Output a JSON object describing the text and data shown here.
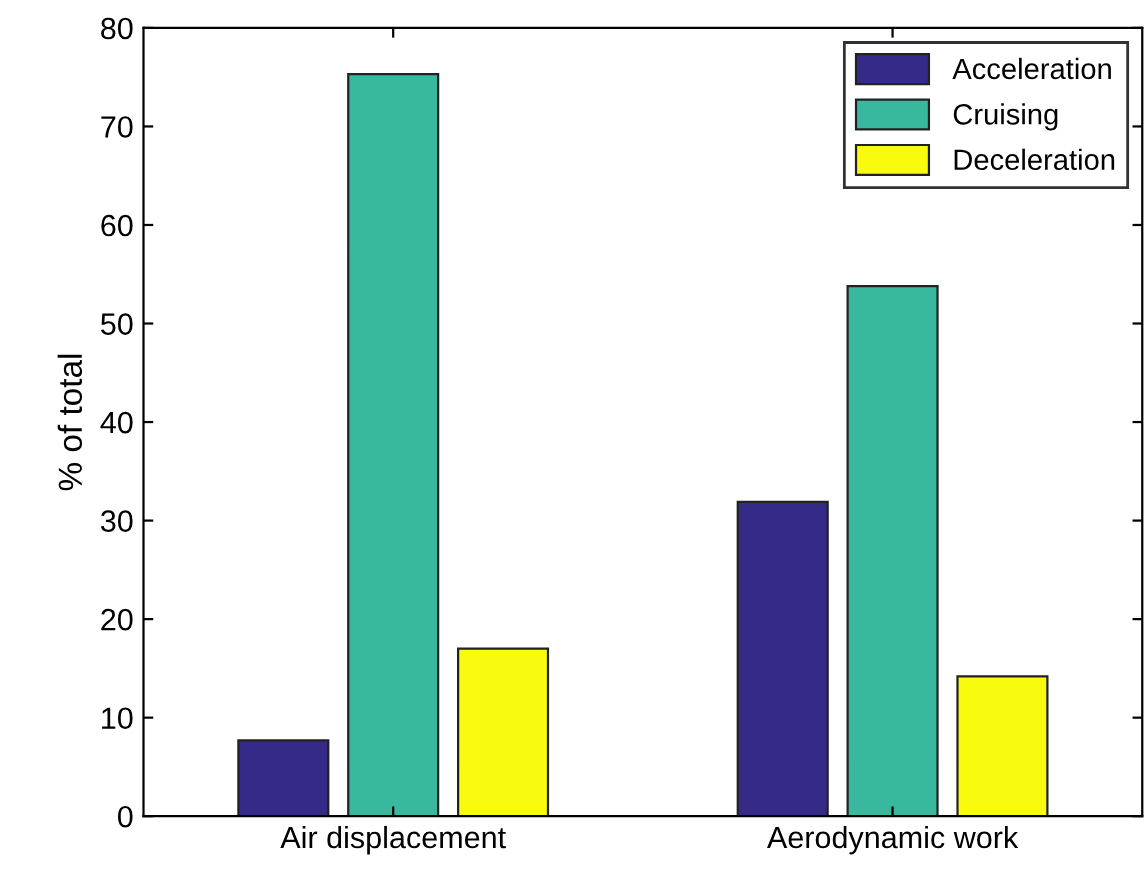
{
  "chart_data": {
    "type": "bar",
    "ylabel": "% of total",
    "categories": [
      "Air displacement",
      "Aerodynamic work"
    ],
    "series": [
      {
        "name": "Acceleration",
        "color": "#352a87",
        "values": [
          7.7,
          31.9
        ]
      },
      {
        "name": "Cruising",
        "color": "#38b99e",
        "values": [
          75.3,
          53.8
        ]
      },
      {
        "name": "Deceleration",
        "color": "#f9fb0e",
        "values": [
          17.0,
          14.2
        ]
      }
    ],
    "ylim": [
      0,
      80
    ],
    "yticks": [
      0,
      10,
      20,
      30,
      40,
      50,
      60,
      70,
      80
    ],
    "grid": false,
    "legend": "top right"
  }
}
